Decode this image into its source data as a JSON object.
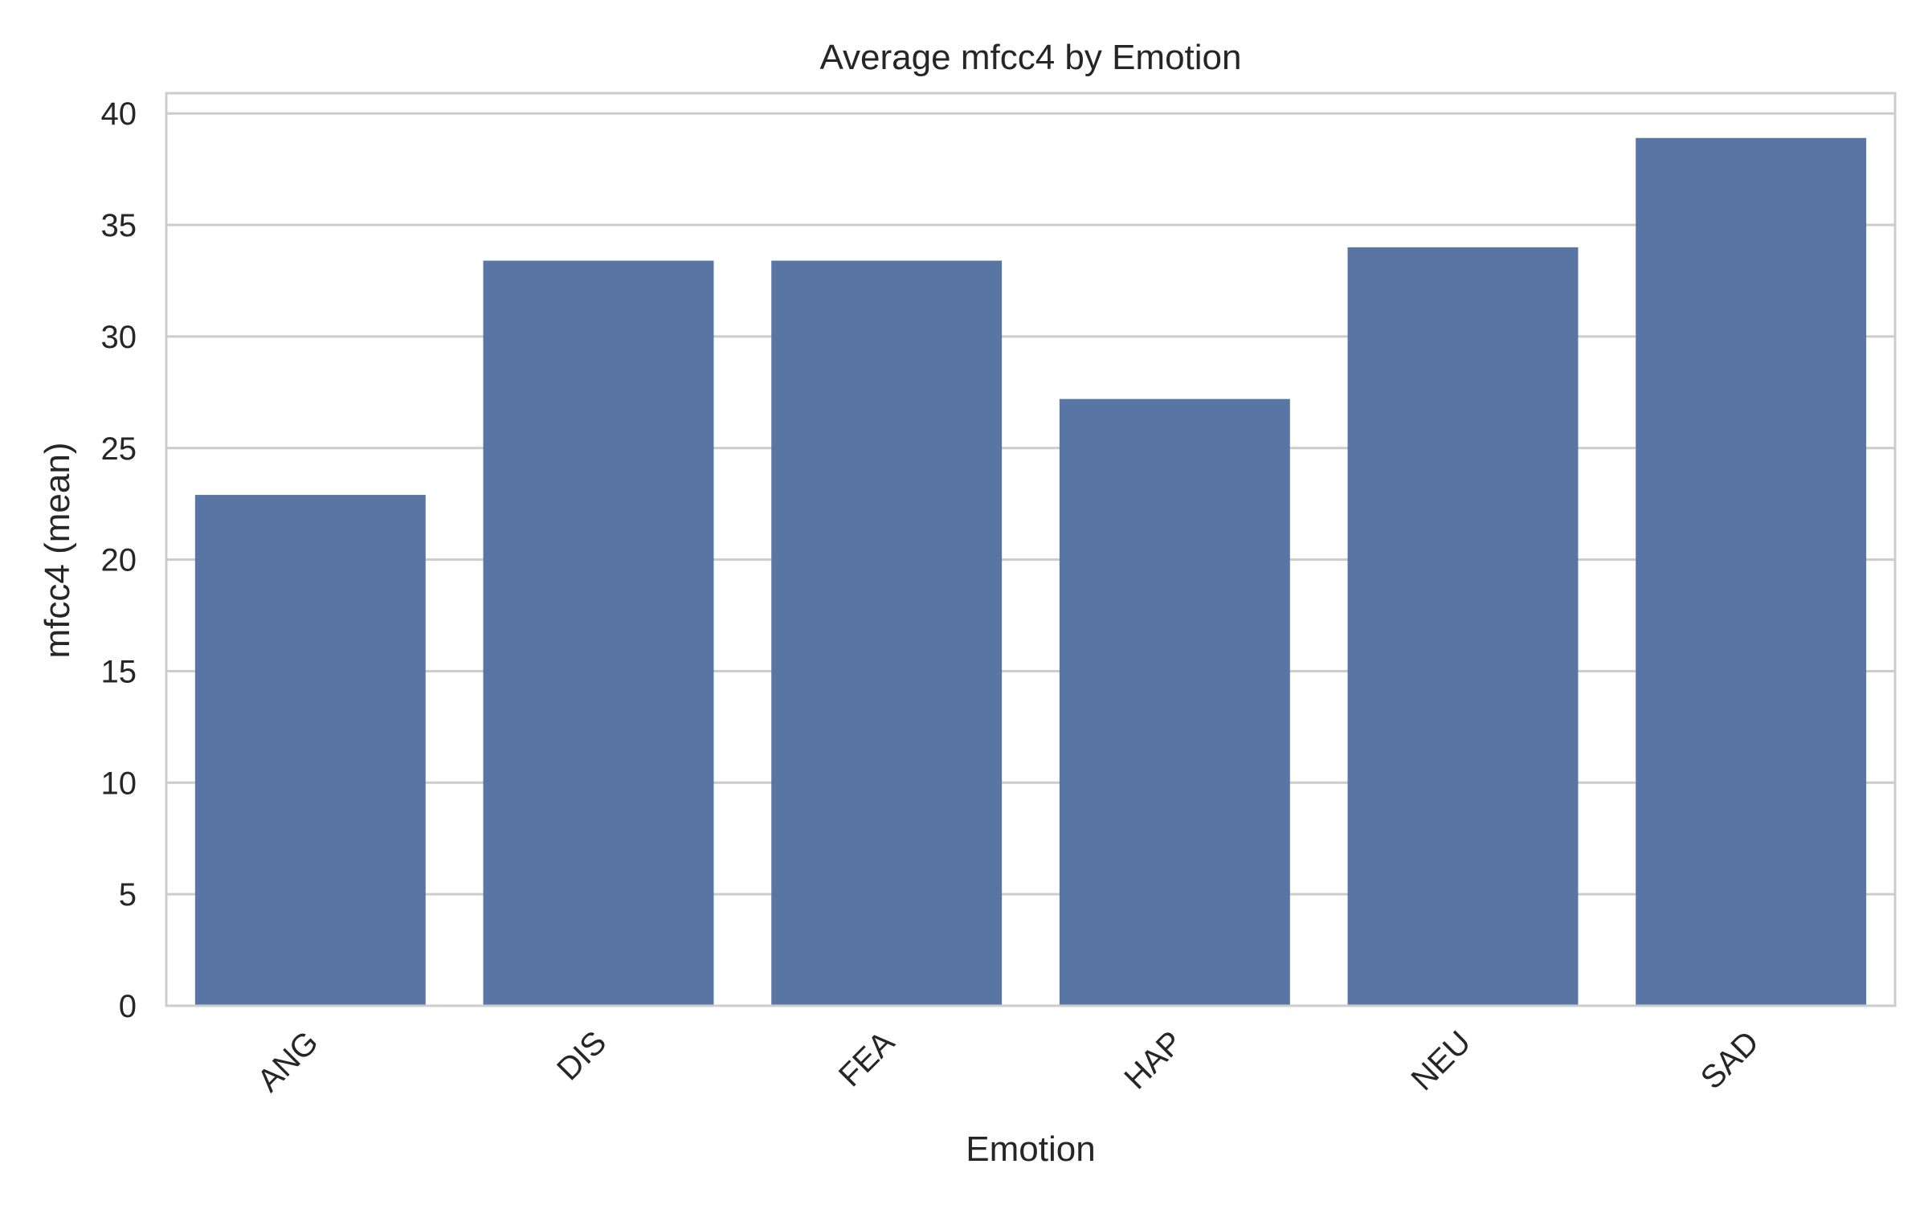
{
  "chart_data": {
    "type": "bar",
    "title": "Average mfcc4 by Emotion",
    "xlabel": "Emotion",
    "ylabel": "mfcc4 (mean)",
    "categories": [
      "ANG",
      "DIS",
      "FEA",
      "HAP",
      "NEU",
      "SAD"
    ],
    "values": [
      22.9,
      33.4,
      33.4,
      27.2,
      34.0,
      38.9
    ],
    "ylim": [
      0,
      41
    ],
    "yticks": [
      0,
      5,
      10,
      15,
      20,
      25,
      30,
      35,
      40
    ],
    "grid": "horizontal",
    "bar_color": "#5975a4",
    "grid_color": "#cccccc",
    "spine_color": "#cccccc"
  }
}
